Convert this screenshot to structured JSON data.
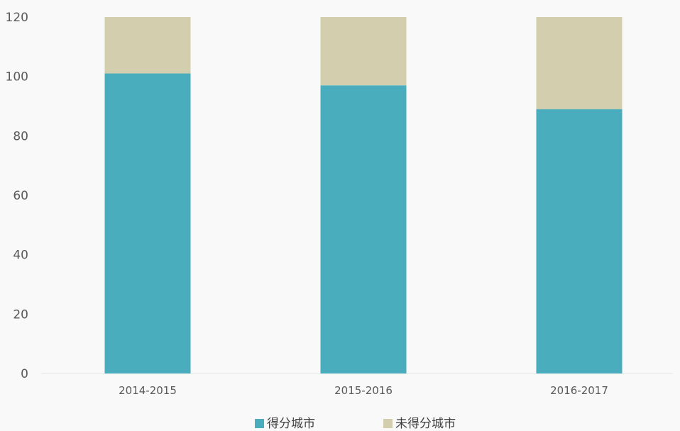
{
  "chart_data": {
    "type": "bar",
    "stacked": true,
    "categories": [
      "2014-2015",
      "2015-2016",
      "2016-2017"
    ],
    "series": [
      {
        "name": "得分城市",
        "values": [
          101,
          97,
          89
        ],
        "color": "#4aadbe"
      },
      {
        "name": "未得分城市",
        "values": [
          19,
          23,
          31
        ],
        "color": "#d3ceae"
      }
    ],
    "ylim": [
      0,
      120
    ],
    "yticks": [
      0,
      20,
      40,
      60,
      80,
      100,
      120
    ],
    "grid": false,
    "legend": "bottom"
  }
}
